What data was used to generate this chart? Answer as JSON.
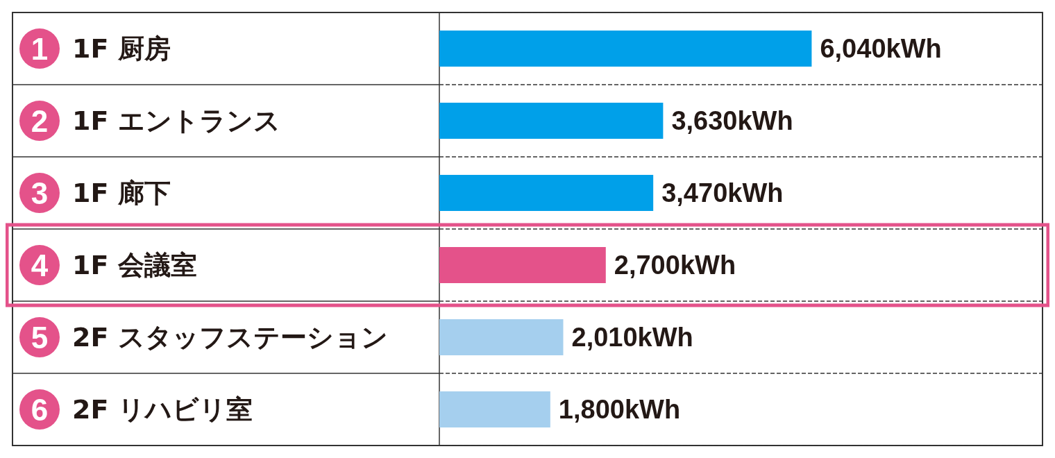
{
  "chart_data": {
    "type": "bar",
    "orientation": "horizontal",
    "categories": [
      "1 1F 厨房",
      "2 1F エントランス",
      "3 1F 廊下",
      "4 1F 会議室",
      "5 2F スタッフステーション",
      "6 2F リハビリ室"
    ],
    "values": [
      6040,
      3630,
      3470,
      2700,
      2010,
      1800
    ],
    "colors": [
      "#00a0e9",
      "#00a0e9",
      "#00a0e9",
      "#e4528a",
      "#a5cfee",
      "#a5cfee"
    ],
    "value_labels": [
      "6,040kWh",
      "3,630kWh",
      "3,470kWh",
      "2,700kWh",
      "2,010kWh",
      "1,800kWh"
    ],
    "grid": true
  }
}
